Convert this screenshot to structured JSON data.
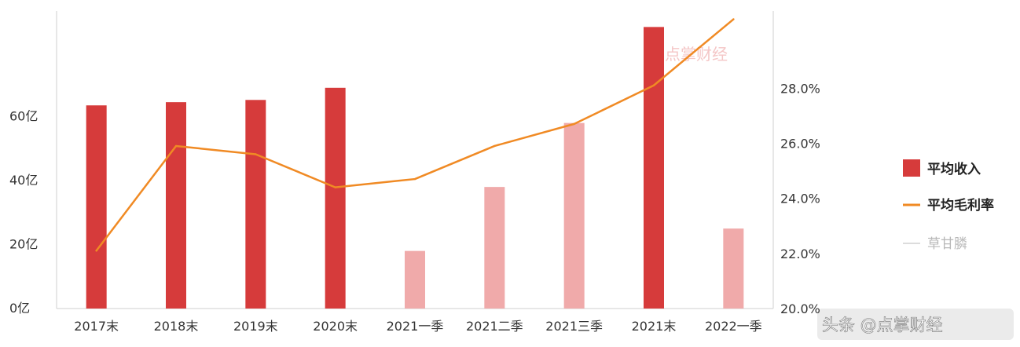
{
  "chart_data": {
    "type": "bar",
    "categories": [
      "2017末",
      "2018末",
      "2019末",
      "2020末",
      "2021一季",
      "2021二季",
      "2021三季",
      "2021末",
      "2022一季"
    ],
    "series": [
      {
        "name": "平均收入",
        "type": "bar",
        "axis": "left",
        "values": [
          63.5,
          64.5,
          65.2,
          69.0,
          18.0,
          38.0,
          58.0,
          88.0,
          25.0
        ],
        "colors": [
          "#d63b3b",
          "#d63b3b",
          "#d63b3b",
          "#d63b3b",
          "#f0aaaa",
          "#f0aaaa",
          "#f0aaaa",
          "#d63b3b",
          "#f0aaaa"
        ]
      },
      {
        "name": "平均毛利率",
        "type": "line",
        "axis": "right",
        "color": "#f08a24",
        "values": [
          22.1,
          25.9,
          25.6,
          24.4,
          24.7,
          25.9,
          26.7,
          28.1,
          30.5
        ]
      }
    ],
    "legend_extra": "草甘膦",
    "y_left": {
      "ticks": [
        "0亿",
        "20亿",
        "40亿",
        "60亿"
      ],
      "tick_values": [
        0,
        20,
        40,
        60
      ],
      "ylim": [
        0,
        93
      ]
    },
    "y_right": {
      "ticks": [
        "20.0%",
        "22.0%",
        "24.0%",
        "26.0%",
        "28.0%"
      ],
      "tick_values": [
        20,
        22,
        24,
        26,
        28
      ],
      "ylim": [
        20,
        30.8
      ]
    },
    "grid": false,
    "legend_position": "right",
    "colors": {
      "bar_main": "#d63b3b",
      "bar_light": "#f0aaaa",
      "line": "#f08a24",
      "axis": "#cfcfcf"
    }
  },
  "watermark": "点掌财经",
  "credit": "头条 @点掌财经"
}
